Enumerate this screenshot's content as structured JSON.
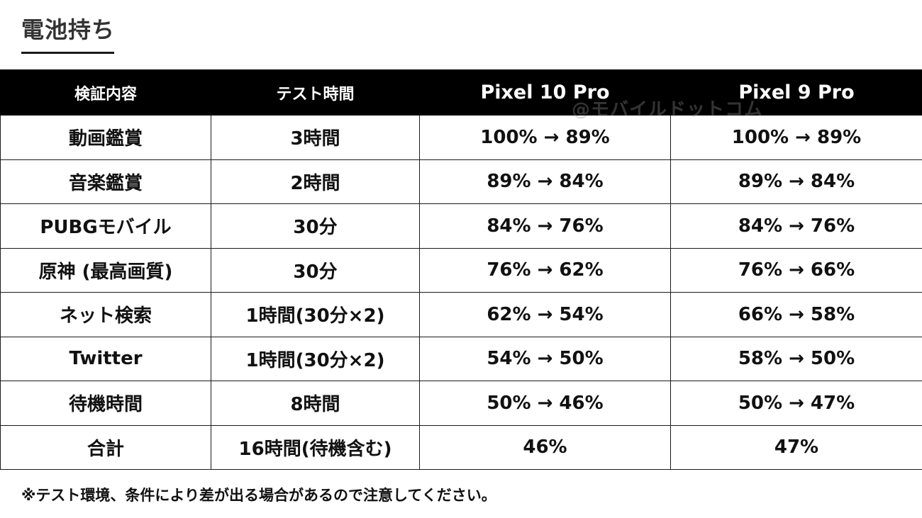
{
  "title": "電池持ち",
  "watermark": "@モバイルドットコム",
  "table": {
    "headers": [
      "検証内容",
      "テスト時間",
      "Pixel 10 Pro",
      "Pixel 9 Pro"
    ],
    "rows": [
      [
        "動画鑑賞",
        "3時間",
        "100% → 89%",
        "100% → 89%"
      ],
      [
        "音楽鑑賞",
        "2時間",
        "89% → 84%",
        "89% → 84%"
      ],
      [
        "PUBGモバイル",
        "30分",
        "84% → 76%",
        "84% → 76%"
      ],
      [
        "原神 (最高画質)",
        "30分",
        "76% → 62%",
        "76% → 66%"
      ],
      [
        "ネット検索",
        "1時間(30分×2)",
        "62% → 54%",
        "66% → 58%"
      ],
      [
        "Twitter",
        "1時間(30分×2)",
        "54% → 50%",
        "58% → 50%"
      ],
      [
        "待機時間",
        "8時間",
        "50% → 46%",
        "50% → 47%"
      ],
      [
        "合計",
        "16時間(待機含む)",
        "46%",
        "47%"
      ]
    ]
  },
  "footnote": "※テスト環境、条件により差が出る場合があるので注意してください。"
}
